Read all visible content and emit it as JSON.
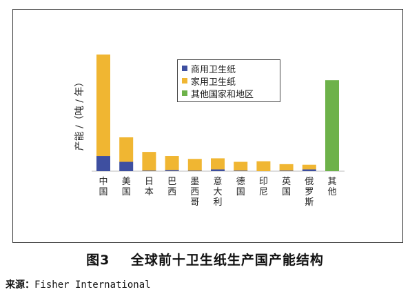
{
  "chart_data": {
    "type": "bar",
    "stacked": true,
    "ylabel": "产能 /（吨 / 年）",
    "categories": [
      "中国",
      "美国",
      "日本",
      "巴西",
      "墨西哥",
      "意大利",
      "德国",
      "印尼",
      "英国",
      "俄罗斯",
      "其他"
    ],
    "series": [
      {
        "name": "商用卫生纸",
        "color": "#3e4fa0",
        "values": [
          13,
          8,
          0.5,
          1,
          0.5,
          1.5,
          0.5,
          0,
          0.5,
          1.5,
          0
        ]
      },
      {
        "name": "家用卫生纸",
        "color": "#f0b632",
        "values": [
          87,
          21,
          16,
          12,
          10,
          9.5,
          7.5,
          8.5,
          5.5,
          4,
          0
        ]
      },
      {
        "name": "其他国家和地区",
        "color": "#6db24a",
        "values": [
          0,
          0,
          0,
          0,
          0,
          0,
          0,
          0,
          0,
          0,
          78
        ]
      }
    ],
    "ylim": [
      0,
      100
    ],
    "grid": false,
    "legend_position": "top-center"
  },
  "caption": {
    "figure_label": "图3",
    "title": "全球前十卫生纸生产国产能结构"
  },
  "source": {
    "label": "来源：",
    "text": "Fisher International"
  }
}
